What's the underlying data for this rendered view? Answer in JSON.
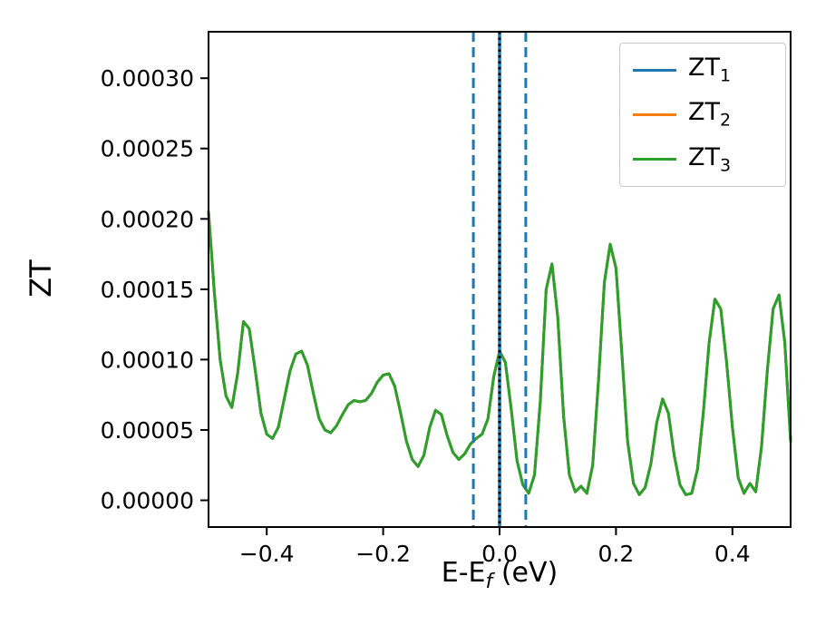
{
  "page": {
    "background": "#ffffff"
  },
  "chart_data": {
    "type": "line",
    "title": "",
    "xlabel": {
      "prefix": "E-E",
      "sub": "f",
      "suffix": " (eV)"
    },
    "ylabel": "ZT",
    "xlim": [
      -0.5,
      0.5
    ],
    "ylim": [
      -1.9e-05,
      0.000333
    ],
    "x_ticks": [
      -0.4,
      -0.2,
      0.0,
      0.2,
      0.4
    ],
    "x_tick_labels": [
      "−0.4",
      "−0.2",
      "0.0",
      "0.2",
      "0.4"
    ],
    "y_ticks": [
      0.0,
      5e-05,
      0.0001,
      0.00015,
      0.0002,
      0.00025,
      0.0003
    ],
    "y_tick_labels": [
      "0.00000",
      "0.00005",
      "0.00010",
      "0.00015",
      "0.00020",
      "0.00025",
      "0.00030"
    ],
    "grid": false,
    "legend_position": "upper right",
    "overlap_note": "ZT_1, ZT_2 and ZT_3 curves coincide exactly; the green ZT_3 curve drawn last is the visible one",
    "x": [
      -0.5,
      -0.49,
      -0.48,
      -0.47,
      -0.46,
      -0.45,
      -0.44,
      -0.43,
      -0.42,
      -0.41,
      -0.4,
      -0.39,
      -0.38,
      -0.37,
      -0.36,
      -0.35,
      -0.34,
      -0.33,
      -0.32,
      -0.31,
      -0.3,
      -0.29,
      -0.28,
      -0.27,
      -0.26,
      -0.25,
      -0.24,
      -0.23,
      -0.22,
      -0.21,
      -0.2,
      -0.19,
      -0.18,
      -0.17,
      -0.16,
      -0.15,
      -0.14,
      -0.13,
      -0.12,
      -0.11,
      -0.1,
      -0.09,
      -0.08,
      -0.07,
      -0.06,
      -0.05,
      -0.04,
      -0.03,
      -0.02,
      -0.01,
      0.0,
      0.01,
      0.02,
      0.03,
      0.04,
      0.05,
      0.06,
      0.07,
      0.08,
      0.09,
      0.1,
      0.11,
      0.12,
      0.13,
      0.14,
      0.15,
      0.16,
      0.17,
      0.18,
      0.19,
      0.2,
      0.21,
      0.22,
      0.23,
      0.24,
      0.25,
      0.26,
      0.27,
      0.28,
      0.29,
      0.3,
      0.31,
      0.32,
      0.33,
      0.34,
      0.35,
      0.36,
      0.37,
      0.38,
      0.39,
      0.4,
      0.41,
      0.42,
      0.43,
      0.44,
      0.45,
      0.46,
      0.47,
      0.48,
      0.49,
      0.5
    ],
    "series": [
      {
        "name": "ZT_1",
        "display": {
          "base": "ZT",
          "sub": "1"
        },
        "color": "#1f77b4",
        "values_same_as": "ZT_3"
      },
      {
        "name": "ZT_2",
        "display": {
          "base": "ZT",
          "sub": "2"
        },
        "color": "#ff7f0e",
        "values_same_as": "ZT_3"
      },
      {
        "name": "ZT_3",
        "display": {
          "base": "ZT",
          "sub": "3"
        },
        "color": "#2ca02c",
        "values": [
          0.000205,
          0.000148,
          0.0001,
          7.4e-05,
          6.6e-05,
          9e-05,
          0.000127,
          0.000122,
          9.3e-05,
          6.2e-05,
          4.7e-05,
          4.4e-05,
          5.2e-05,
          7.2e-05,
          9.2e-05,
          0.000104,
          0.000106,
          9.6e-05,
          7.6e-05,
          5.8e-05,
          5e-05,
          4.8e-05,
          5.3e-05,
          6.1e-05,
          6.8e-05,
          7.1e-05,
          7e-05,
          7.1e-05,
          7.6e-05,
          8.4e-05,
          8.9e-05,
          9e-05,
          8.1e-05,
          6.2e-05,
          4.2e-05,
          2.9e-05,
          2.4e-05,
          3.2e-05,
          5.2e-05,
          6.4e-05,
          6.1e-05,
          4.6e-05,
          3.4e-05,
          2.9e-05,
          3.3e-05,
          4e-05,
          4.4e-05,
          4.7e-05,
          5.8e-05,
          8.8e-05,
          0.000106,
          9.8e-05,
          6.5e-05,
          2.8e-05,
          1.1e-05,
          5e-06,
          1.8e-05,
          7e-05,
          0.00015,
          0.000168,
          0.00013,
          6e-05,
          1.8e-05,
          6e-06,
          1e-05,
          5e-06,
          2.5e-05,
          8.5e-05,
          0.000155,
          0.000182,
          0.000165,
          0.000105,
          4.2e-05,
          1.2e-05,
          4e-06,
          9e-06,
          2.6e-05,
          5.5e-05,
          7.2e-05,
          6.2e-05,
          3.2e-05,
          1.1e-05,
          4e-06,
          5e-06,
          2.2e-05,
          6.2e-05,
          0.000112,
          0.000143,
          0.000136,
          9.8e-05,
          5.2e-05,
          1.6e-05,
          5e-06,
          1.2e-05,
          6e-06,
          3.8e-05,
          9.2e-05,
          0.000136,
          0.000146,
          0.000112,
          4.2e-05
        ]
      }
    ],
    "vlines": [
      {
        "x": -0.045,
        "color": "#1f77b4",
        "style": "dashed"
      },
      {
        "x": 0.0,
        "color": "#1f77b4",
        "style": "solid"
      },
      {
        "x": 0.0,
        "color": "#000000",
        "style": "dotted"
      },
      {
        "x": 0.045,
        "color": "#1f77b4",
        "style": "dashed"
      }
    ]
  }
}
